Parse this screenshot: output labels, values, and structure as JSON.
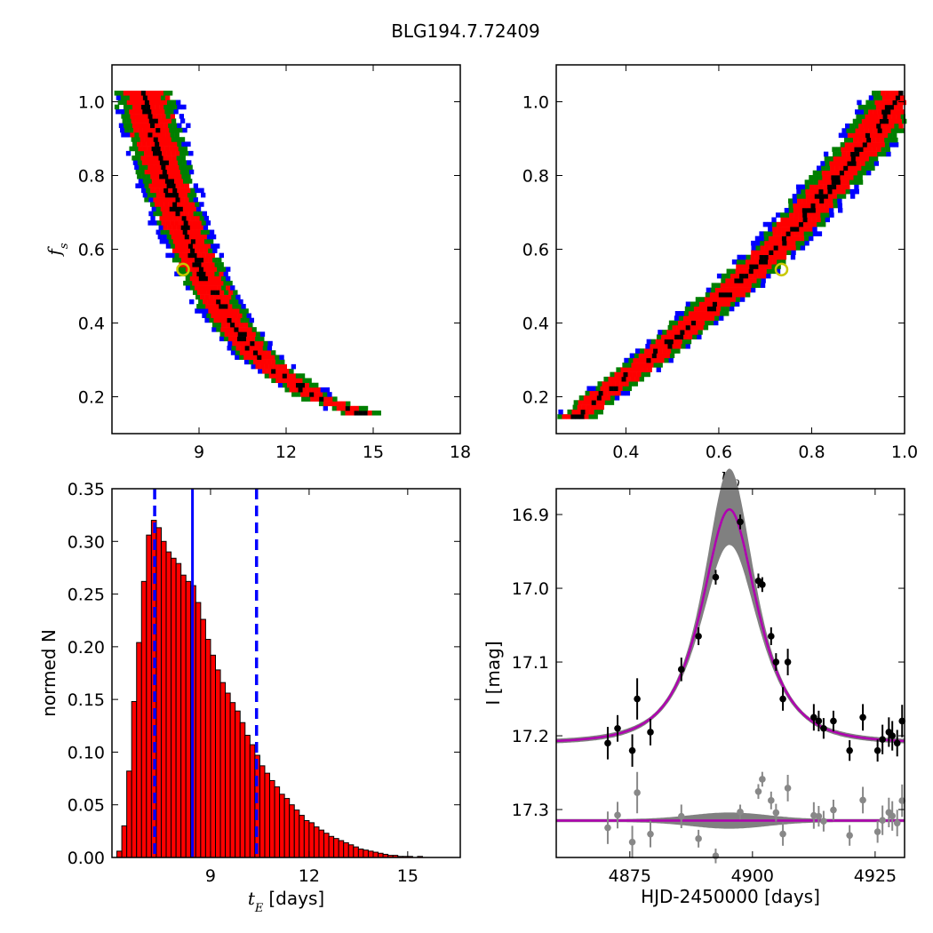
{
  "figure_title": "BLG194.7.72409",
  "chart_data": [
    {
      "id": "tE_fs",
      "type": "heatmap",
      "xlabel": "",
      "ylabel": "f_s",
      "xlim": [
        6,
        18
      ],
      "ylim": [
        0.1,
        1.1
      ],
      "xticks": [
        9,
        12,
        15,
        18
      ],
      "yticks": [
        0.2,
        0.4,
        0.6,
        0.8,
        1.0
      ],
      "best_fit": {
        "x": 8.45,
        "y": 0.545
      },
      "band": {
        "ys": [
          1.03,
          1.0,
          0.9,
          0.8,
          0.7,
          0.6,
          0.5,
          0.4,
          0.3,
          0.2,
          0.15
        ],
        "xs": [
          7.05,
          7.2,
          7.5,
          7.85,
          8.25,
          8.75,
          9.35,
          10.1,
          11.15,
          13.0,
          14.8
        ]
      },
      "confidence_colors": [
        "#000000",
        "#ff0000",
        "#007f00",
        "#0000ff"
      ]
    },
    {
      "id": "u0_fs",
      "type": "heatmap",
      "xlabel": "u_0",
      "ylabel": "",
      "xlim": [
        0.25,
        1.0
      ],
      "ylim": [
        0.1,
        1.1
      ],
      "xticks": [
        0.4,
        0.6,
        0.8,
        1.0
      ],
      "yticks": [
        0.2,
        0.4,
        0.6,
        0.8,
        1.0
      ],
      "best_fit": {
        "x": 0.735,
        "y": 0.545
      },
      "band": {
        "ys": [
          0.14,
          0.2,
          0.3,
          0.4,
          0.5,
          0.6,
          0.7,
          0.8,
          0.9,
          1.0,
          1.03
        ],
        "xs": [
          0.29,
          0.345,
          0.45,
          0.545,
          0.635,
          0.72,
          0.79,
          0.86,
          0.925,
          0.98,
          0.995
        ]
      },
      "confidence_colors": [
        "#000000",
        "#ff0000",
        "#007f00",
        "#0000ff"
      ]
    },
    {
      "id": "tE_hist",
      "type": "bar",
      "xlabel": "t_E [days]",
      "ylabel": "normed N",
      "xlim": [
        6,
        16.6
      ],
      "ylim": [
        0,
        0.35
      ],
      "xticks": [
        9,
        12,
        15
      ],
      "yticks": [
        0.0,
        0.05,
        0.1,
        0.15,
        0.2,
        0.25,
        0.3,
        0.35
      ],
      "ytick_labels": [
        "0.00",
        "0.05",
        "0.10",
        "0.15",
        "0.20",
        "0.25",
        "0.30",
        "0.35"
      ],
      "bin_start": 6.0,
      "bin_width": 0.15,
      "values": [
        0.0,
        0.006,
        0.03,
        0.082,
        0.148,
        0.204,
        0.262,
        0.306,
        0.32,
        0.313,
        0.3,
        0.29,
        0.284,
        0.279,
        0.268,
        0.262,
        0.258,
        0.242,
        0.226,
        0.207,
        0.192,
        0.178,
        0.166,
        0.156,
        0.147,
        0.139,
        0.128,
        0.116,
        0.107,
        0.097,
        0.087,
        0.08,
        0.073,
        0.067,
        0.06,
        0.056,
        0.05,
        0.045,
        0.04,
        0.035,
        0.033,
        0.029,
        0.026,
        0.023,
        0.02,
        0.018,
        0.016,
        0.014,
        0.012,
        0.01,
        0.008,
        0.007,
        0.006,
        0.005,
        0.004,
        0.003,
        0.002,
        0.002,
        0.001,
        0.001,
        0.001,
        0.0,
        0.001,
        0.0,
        0.0,
        0.0,
        0.0,
        0.0,
        0.0,
        0.0,
        0.0
      ],
      "median": 8.45,
      "interval": [
        7.3,
        10.4
      ],
      "bar_color": "#ff0000"
    },
    {
      "id": "lightcurve",
      "type": "scatter",
      "xlabel": "HJD-2450000 [days]",
      "ylabel": "I [mag]",
      "xlim": [
        4860,
        4931
      ],
      "ylim": [
        17.365,
        16.865
      ],
      "xticks": [
        4875,
        4900,
        4925
      ],
      "yticks": [
        16.9,
        17.0,
        17.1,
        17.2,
        17.3
      ],
      "model": {
        "t0": 4895.3,
        "tE": 8.45,
        "u0": 0.735,
        "fs": 0.545,
        "baseline": 17.21
      },
      "model_color": "#b000b0",
      "band_color": "#808080",
      "data_offset": 17.315,
      "points": [
        {
          "t": 4870.5,
          "mag": 17.21,
          "err": 0.022
        },
        {
          "t": 4872.5,
          "mag": 17.19,
          "err": 0.018
        },
        {
          "t": 4875.5,
          "mag": 17.22,
          "err": 0.022
        },
        {
          "t": 4876.5,
          "mag": 17.15,
          "err": 0.028
        },
        {
          "t": 4879.2,
          "mag": 17.195,
          "err": 0.018
        },
        {
          "t": 4885.5,
          "mag": 17.11,
          "err": 0.016
        },
        {
          "t": 4889.0,
          "mag": 17.065,
          "err": 0.012
        },
        {
          "t": 4892.5,
          "mag": 16.985,
          "err": 0.01
        },
        {
          "t": 4897.5,
          "mag": 16.91,
          "err": 0.01
        },
        {
          "t": 4901.2,
          "mag": 16.99,
          "err": 0.01
        },
        {
          "t": 4902.0,
          "mag": 16.995,
          "err": 0.01
        },
        {
          "t": 4903.8,
          "mag": 17.065,
          "err": 0.012
        },
        {
          "t": 4904.8,
          "mag": 17.1,
          "err": 0.012
        },
        {
          "t": 4906.2,
          "mag": 17.15,
          "err": 0.016
        },
        {
          "t": 4907.2,
          "mag": 17.1,
          "err": 0.018
        },
        {
          "t": 4912.5,
          "mag": 17.175,
          "err": 0.018
        },
        {
          "t": 4913.5,
          "mag": 17.18,
          "err": 0.014
        },
        {
          "t": 4914.5,
          "mag": 17.19,
          "err": 0.014
        },
        {
          "t": 4916.5,
          "mag": 17.18,
          "err": 0.014
        },
        {
          "t": 4919.8,
          "mag": 17.22,
          "err": 0.014
        },
        {
          "t": 4922.5,
          "mag": 17.175,
          "err": 0.018
        },
        {
          "t": 4925.5,
          "mag": 17.22,
          "err": 0.015
        },
        {
          "t": 4926.5,
          "mag": 17.205,
          "err": 0.02
        },
        {
          "t": 4927.8,
          "mag": 17.195,
          "err": 0.02
        },
        {
          "t": 4928.5,
          "mag": 17.2,
          "err": 0.02
        },
        {
          "t": 4929.5,
          "mag": 17.21,
          "err": 0.018
        },
        {
          "t": 4930.5,
          "mag": 17.18,
          "err": 0.022
        }
      ]
    }
  ]
}
